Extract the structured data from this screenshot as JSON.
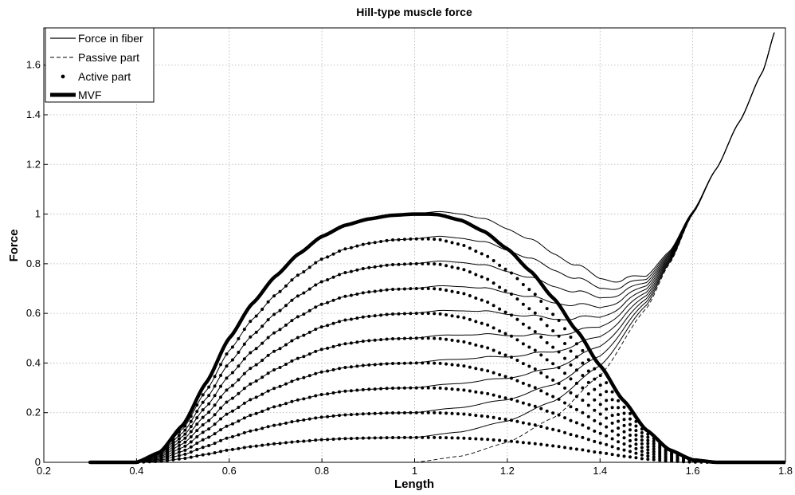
{
  "chart_data": {
    "type": "line",
    "title": "Hill-type muscle force",
    "xlabel": "Length",
    "ylabel": "Force",
    "xlim": [
      0.2,
      1.8
    ],
    "ylim": [
      0,
      1.75
    ],
    "xticks": [
      0.2,
      0.4,
      0.6,
      0.8,
      1,
      1.2,
      1.4,
      1.6,
      1.8
    ],
    "yticks": [
      0,
      0.2,
      0.4,
      0.6,
      0.8,
      1,
      1.2,
      1.4,
      1.6
    ],
    "xtick_labels": [
      "0.2",
      "0.4",
      "0.6",
      "0.8",
      "1",
      "1.2",
      "1.4",
      "1.6",
      "1.8"
    ],
    "ytick_labels": [
      "0",
      "0.2",
      "0.4",
      "0.6",
      "0.8",
      "1",
      "1.2",
      "1.4",
      "1.6"
    ],
    "grid": true,
    "legend_position": "top-left",
    "legend": [
      {
        "label": "Force in fiber",
        "style": "solid"
      },
      {
        "label": "Passive part",
        "style": "dashed"
      },
      {
        "label": "Active part",
        "style": "dotted"
      },
      {
        "label": "MVF",
        "style": "thick"
      }
    ],
    "activation_levels": [
      0.1,
      0.2,
      0.3,
      0.4,
      0.5,
      0.6,
      0.7,
      0.8,
      0.9
    ],
    "series": [
      {
        "label": "MVF",
        "x": [
          0.3,
          0.4,
          0.45,
          0.5,
          0.55,
          0.6,
          0.65,
          0.7,
          0.75,
          0.8,
          0.85,
          0.9,
          0.95,
          1.0,
          1.03,
          1.05,
          1.1,
          1.15,
          1.2,
          1.25,
          1.3,
          1.35,
          1.4,
          1.45,
          1.5,
          1.55,
          1.6,
          1.65,
          1.7,
          1.8
        ],
        "y": [
          0,
          0,
          0.04,
          0.15,
          0.32,
          0.5,
          0.64,
          0.75,
          0.84,
          0.91,
          0.955,
          0.98,
          0.995,
          1.0,
          1.0,
          0.998,
          0.975,
          0.93,
          0.86,
          0.77,
          0.66,
          0.53,
          0.39,
          0.25,
          0.13,
          0.05,
          0.01,
          0,
          0,
          0
        ]
      },
      {
        "label": "Passive part",
        "x": [
          1.0,
          1.1,
          1.2,
          1.3,
          1.4,
          1.5,
          1.55,
          1.6,
          1.65,
          1.7,
          1.75,
          1.78
        ],
        "y": [
          0,
          0.025,
          0.08,
          0.18,
          0.35,
          0.62,
          0.8,
          1.0,
          1.18,
          1.37,
          1.57,
          1.75
        ]
      }
    ]
  }
}
